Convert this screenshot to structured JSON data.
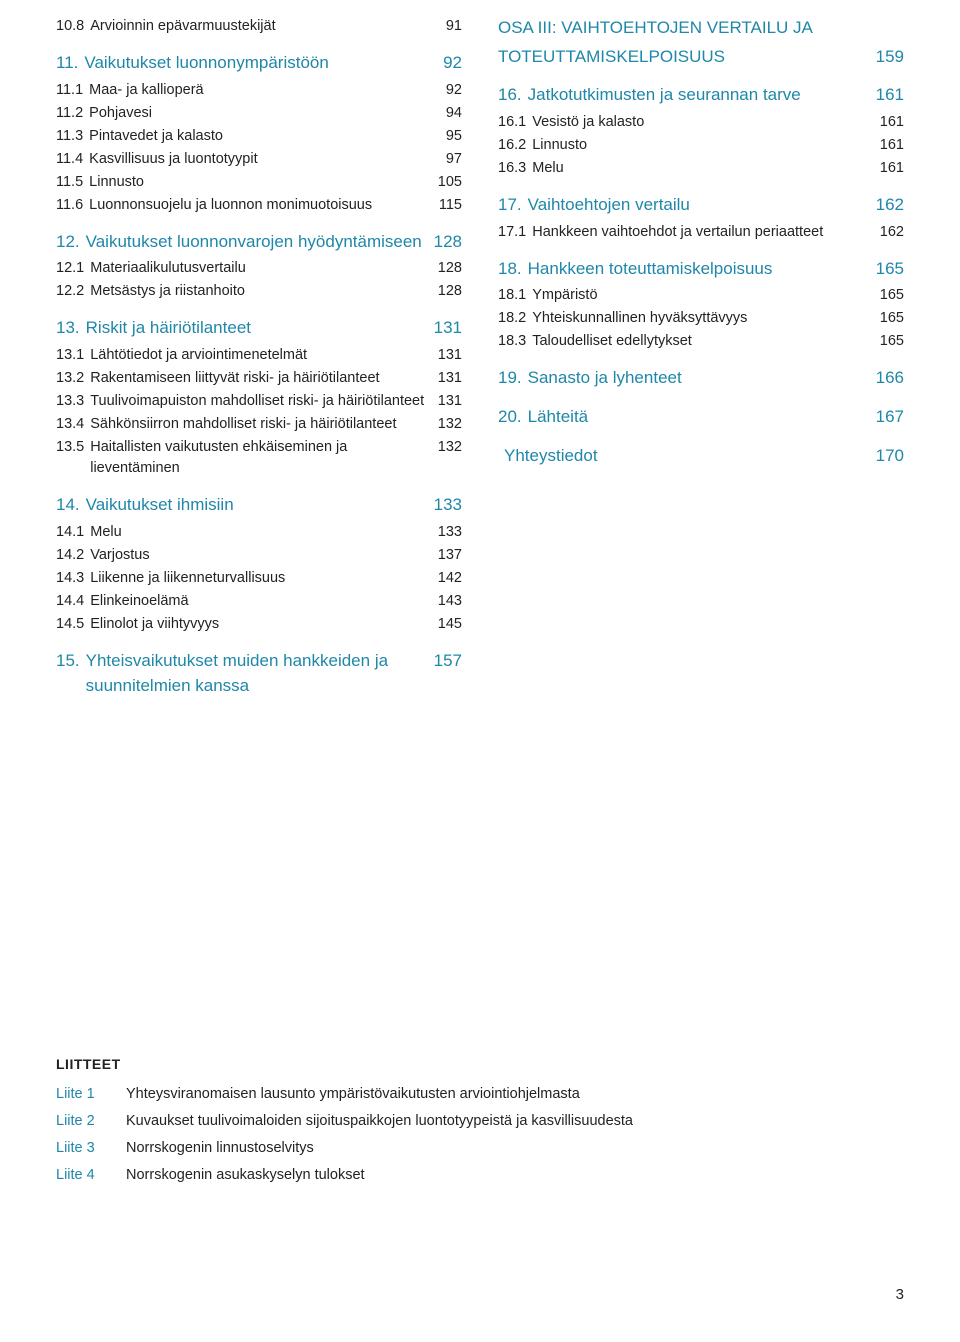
{
  "colors": {
    "accent": "#1f87a8",
    "text": "#222222",
    "background": "#ffffff"
  },
  "typography": {
    "body_size_pt": 11,
    "section_size_pt": 13,
    "font_family": "Helvetica Neue"
  },
  "left_column": [
    {
      "type": "sub",
      "num": "10.8",
      "label": "Arvioinnin epävarmuustekijät",
      "page": "91"
    },
    {
      "type": "section",
      "num": "11.",
      "label": "Vaikutukset luonnonympäristöön",
      "page": "92"
    },
    {
      "type": "sub",
      "num": "11.1",
      "label": "Maa- ja kallioperä",
      "page": "92"
    },
    {
      "type": "sub",
      "num": "11.2",
      "label": "Pohjavesi",
      "page": "94"
    },
    {
      "type": "sub",
      "num": "11.3",
      "label": "Pintavedet ja kalasto",
      "page": "95"
    },
    {
      "type": "sub",
      "num": "11.4",
      "label": "Kasvillisuus ja luontotyypit",
      "page": "97"
    },
    {
      "type": "sub",
      "num": "11.5",
      "label": "Linnusto",
      "page": "105"
    },
    {
      "type": "sub",
      "num": "11.6",
      "label": "Luonnonsuojelu ja luonnon monimuotoisuus",
      "page": "115"
    },
    {
      "type": "section",
      "num": "12.",
      "label": "Vaikutukset luonnonvarojen hyödyntämiseen",
      "page": "128"
    },
    {
      "type": "sub",
      "num": "12.1",
      "label": "Materiaalikulutusvertailu",
      "page": "128"
    },
    {
      "type": "sub",
      "num": "12.2",
      "label": "Metsästys ja riistanhoito",
      "page": "128"
    },
    {
      "type": "section",
      "num": "13.",
      "label": "Riskit ja häiriötilanteet",
      "page": "131"
    },
    {
      "type": "sub",
      "num": "13.1",
      "label": "Lähtötiedot ja arviointimenetelmät",
      "page": "131"
    },
    {
      "type": "sub",
      "num": "13.2",
      "label": "Rakentamiseen liittyvät riski- ja häiriötilanteet",
      "page": "131"
    },
    {
      "type": "sub",
      "num": "13.3",
      "label": "Tuulivoimapuiston mahdolliset riski- ja häiriötilanteet",
      "page": "131"
    },
    {
      "type": "sub",
      "num": "13.4",
      "label": "Sähkönsiirron mahdolliset riski- ja häiriötilanteet",
      "page": "132"
    },
    {
      "type": "sub",
      "num": "13.5",
      "label": "Haitallisten vaikutusten ehkäiseminen ja lieventäminen",
      "page": "132"
    },
    {
      "type": "section",
      "num": "14.",
      "label": "Vaikutukset ihmisiin",
      "page": "133"
    },
    {
      "type": "sub",
      "num": "14.1",
      "label": "Melu",
      "page": "133"
    },
    {
      "type": "sub",
      "num": "14.2",
      "label": "Varjostus",
      "page": "137"
    },
    {
      "type": "sub",
      "num": "14.3",
      "label": "Liikenne ja liikenneturvallisuus",
      "page": "142"
    },
    {
      "type": "sub",
      "num": "14.4",
      "label": "Elinkeinoelämä",
      "page": "143"
    },
    {
      "type": "sub",
      "num": "14.5",
      "label": "Elinolot ja viihtyvyys",
      "page": "145"
    },
    {
      "type": "section",
      "num": "15.",
      "label": "Yhteisvaikutukset muiden hankkeiden ja suunnitelmien kanssa",
      "page": "157"
    }
  ],
  "right_column": {
    "part_heading": {
      "label_line1": "OSA III: VAIHTOEHTOJEN VERTAILU JA",
      "label_line2": "TOTEUTTAMISKELPOISUUS",
      "page": "159"
    },
    "items": [
      {
        "type": "section",
        "num": "16.",
        "label": "Jatkotutkimusten ja seurannan tarve",
        "page": "161"
      },
      {
        "type": "sub",
        "num": "16.1",
        "label": "Vesistö ja kalasto",
        "page": "161"
      },
      {
        "type": "sub",
        "num": "16.2",
        "label": "Linnusto",
        "page": "161"
      },
      {
        "type": "sub",
        "num": "16.3",
        "label": "Melu",
        "page": "161"
      },
      {
        "type": "section",
        "num": "17.",
        "label": "Vaihtoehtojen vertailu",
        "page": "162"
      },
      {
        "type": "sub",
        "num": "17.1",
        "label": "Hankkeen vaihtoehdot ja vertailun periaatteet",
        "page": "162"
      },
      {
        "type": "section",
        "num": "18.",
        "label": "Hankkeen toteuttamiskelpoisuus",
        "page": "165"
      },
      {
        "type": "sub",
        "num": "18.1",
        "label": "Ympäristö",
        "page": "165"
      },
      {
        "type": "sub",
        "num": "18.2",
        "label": "Yhteiskunnallinen hyväksyttävyys",
        "page": "165"
      },
      {
        "type": "sub",
        "num": "18.3",
        "label": "Taloudelliset edellytykset",
        "page": "165"
      },
      {
        "type": "section",
        "num": "19.",
        "label": "Sanasto ja lyhenteet",
        "page": "166"
      },
      {
        "type": "section",
        "num": "20.",
        "label": "Lähteitä",
        "page": "167"
      },
      {
        "type": "section",
        "num": "",
        "label": "Yhteystiedot",
        "page": "170"
      }
    ]
  },
  "liitteet": {
    "title": "LIITTEET",
    "rows": [
      {
        "key": "Liite 1",
        "text": "Yhteysviranomaisen lausunto ympäristövaikutusten arviointiohjelmasta"
      },
      {
        "key": "Liite 2",
        "text": "Kuvaukset tuulivoimaloiden sijoituspaikkojen luontotyypeistä ja kasvillisuudesta"
      },
      {
        "key": "Liite 3",
        "text": "Norrskogenin linnustoselvitys"
      },
      {
        "key": "Liite 4",
        "text": "Norrskogenin asukaskyselyn tulokset"
      }
    ]
  },
  "page_number": "3"
}
